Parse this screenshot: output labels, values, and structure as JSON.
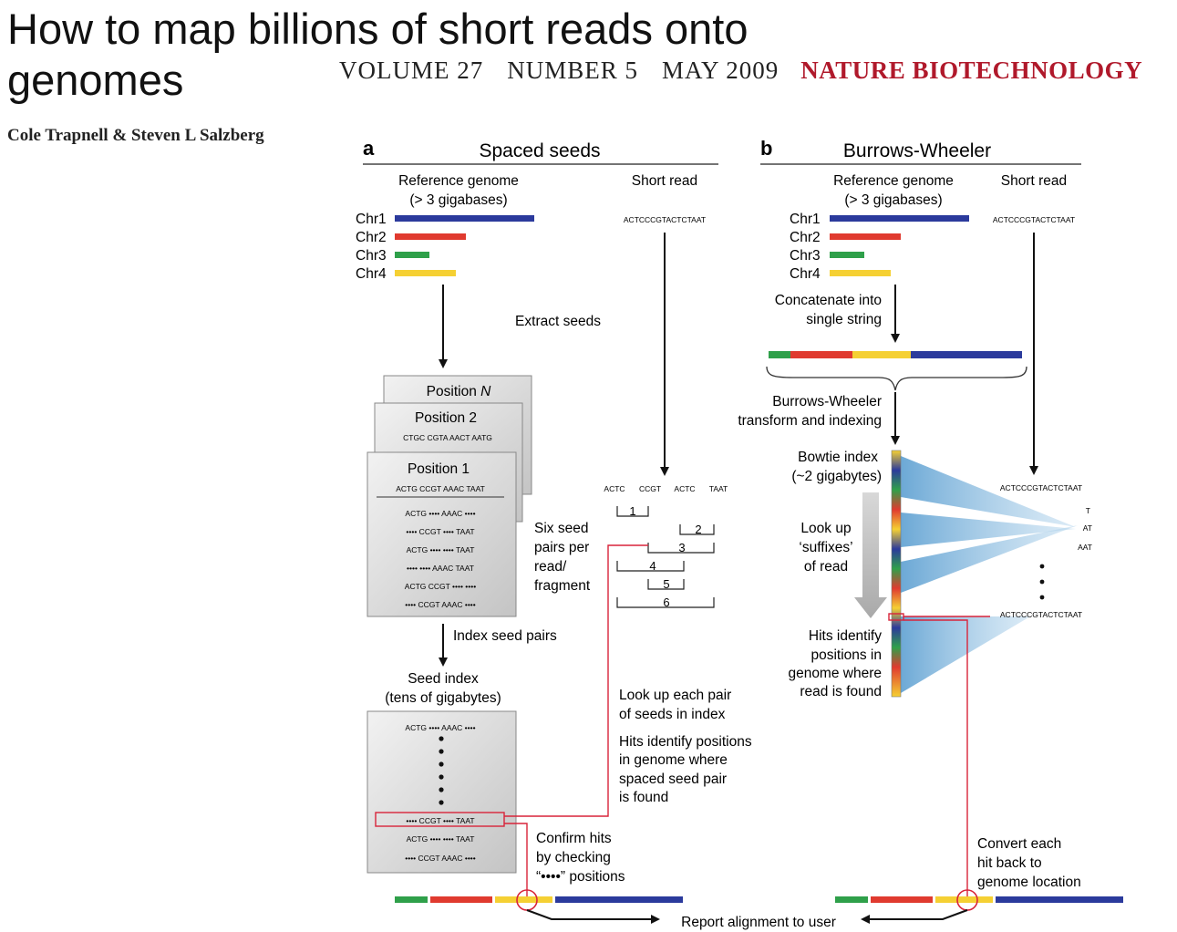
{
  "header": {
    "title_line1": "How to map billions of short reads onto",
    "title_line2": "genomes",
    "volume": "VOLUME 27",
    "number": "NUMBER 5",
    "date": "MAY 2009",
    "journal": "NATURE BIOTECHNOLOGY",
    "authors": "Cole Trapnell & Steven L Salzberg"
  },
  "colors": {
    "chr1": "#2b3a9c",
    "chr2": "#e03a2f",
    "chr3": "#2fa04a",
    "chr4": "#f5d033",
    "red_line": "#d8243a",
    "journal": "#b0192b"
  },
  "panel_a": {
    "letter": "a",
    "title": "Spaced seeds",
    "ref_genome_line1": "Reference genome",
    "ref_genome_line2": "(> 3 gigabases)",
    "short_read_label": "Short read",
    "short_read_seq": "ACTCCCGTACTCTAAT",
    "chromosomes": [
      "Chr1",
      "Chr2",
      "Chr3",
      "Chr4"
    ],
    "extract_seeds": "Extract seeds",
    "position_n": "Position N",
    "position_2": "Position 2",
    "position_2_seq": "CTGC CGTA AACT AATG",
    "position_1": "Position 1",
    "position_1_seq": "ACTG CCGT AAAC TAAT",
    "seed_rows": [
      "ACTG •••• AAAC ••••",
      "•••• CCGT •••• TAAT",
      "ACTG •••• •••• TAAT",
      "•••• •••• AAAC TAAT",
      "ACTG CCGT •••• ••••",
      "•••• CCGT AAAC ••••"
    ],
    "six_seed_lines": [
      "Six seed",
      "pairs per",
      "read/",
      "fragment"
    ],
    "read_split": [
      "ACTC",
      "CCGT",
      "ACTC",
      "TAAT"
    ],
    "pair_numbers": [
      "1",
      "2",
      "3",
      "4",
      "5",
      "6"
    ],
    "index_seed_pairs": "Index seed pairs",
    "seed_index_line1": "Seed index",
    "seed_index_line2": "(tens of gigabytes)",
    "index_rows": [
      "ACTG •••• AAAC ••••",
      "•••• CCGT •••• TAAT",
      "ACTG •••• •••• TAAT",
      "•••• CCGT AAAC ••••"
    ],
    "lookup_lines": [
      "Look up each pair",
      "of seeds in index"
    ],
    "hits_lines": [
      "Hits identify positions",
      "in genome where",
      "spaced seed pair",
      "is found"
    ],
    "confirm_lines": [
      "Confirm hits",
      "by checking",
      "“••••” positions"
    ]
  },
  "panel_b": {
    "letter": "b",
    "title": "Burrows-Wheeler",
    "ref_genome_line1": "Reference genome",
    "ref_genome_line2": "(> 3 gigabases)",
    "short_read_label": "Short read",
    "short_read_seq": "ACTCCCGTACTCTAAT",
    "chromosomes": [
      "Chr1",
      "Chr2",
      "Chr3",
      "Chr4"
    ],
    "concat_lines": [
      "Concatenate into",
      "single string"
    ],
    "bwt_lines": [
      "Burrows-Wheeler",
      "transform and indexing"
    ],
    "bowtie_lines": [
      "Bowtie index",
      "(~2 gigabytes)"
    ],
    "lookup_lines": [
      "Look up",
      "‘suffixes’",
      "of read"
    ],
    "hits_lines": [
      "Hits identify",
      "positions in",
      "genome where",
      "read is found"
    ],
    "suffixes": [
      "ACTCCCGTACTCTAAT",
      "T",
      "AT",
      "AAT",
      "ACTCCCGTACTCTAAT"
    ],
    "convert_lines": [
      "Convert each",
      "hit back to",
      "genome location"
    ]
  },
  "footer": {
    "report": "Report alignment to user"
  }
}
